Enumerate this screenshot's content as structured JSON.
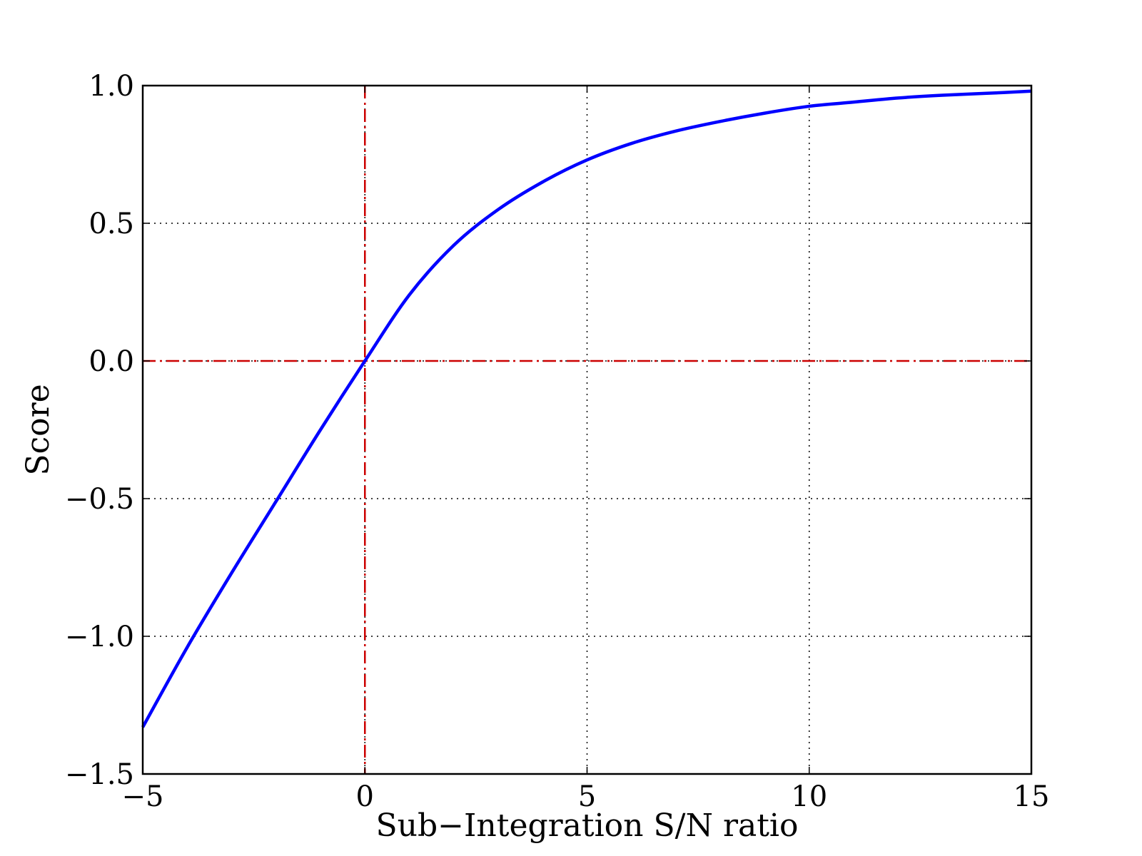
{
  "chart_data": {
    "type": "line",
    "xlabel": "Sub−Integration S/N ratio",
    "ylabel": "Score",
    "xlim": [
      -5,
      15
    ],
    "ylim": [
      -1.5,
      1.0
    ],
    "xticks": [
      -5,
      0,
      5,
      10,
      15
    ],
    "xtick_labels": [
      "−5",
      "0",
      "5",
      "10",
      "15"
    ],
    "yticks": [
      -1.5,
      -1.0,
      -0.5,
      0.0,
      0.5,
      1.0
    ],
    "ytick_labels": [
      "−1.5",
      "−1.0",
      "−0.5",
      "0.0",
      "0.5",
      "1.0"
    ],
    "grid": true,
    "grid_style": "dotted",
    "series": [
      {
        "color": "#0000ff",
        "x": [
          -5,
          -4,
          -3,
          -2,
          -1,
          0,
          1,
          2,
          3,
          4,
          5,
          6,
          7,
          8,
          9,
          10,
          11,
          12,
          13,
          14,
          15
        ],
        "y": [
          -1.33,
          -1.04,
          -0.77,
          -0.51,
          -0.25,
          0.0,
          0.24,
          0.42,
          0.55,
          0.65,
          0.73,
          0.79,
          0.835,
          0.87,
          0.9,
          0.925,
          0.94,
          0.955,
          0.965,
          0.972,
          0.98
        ]
      }
    ],
    "reference_lines": [
      {
        "orientation": "vertical",
        "value": 0,
        "color": "#cc0000",
        "style": "dash-dot"
      },
      {
        "orientation": "horizontal",
        "value": 0,
        "color": "#cc0000",
        "style": "dash-dot"
      }
    ]
  }
}
